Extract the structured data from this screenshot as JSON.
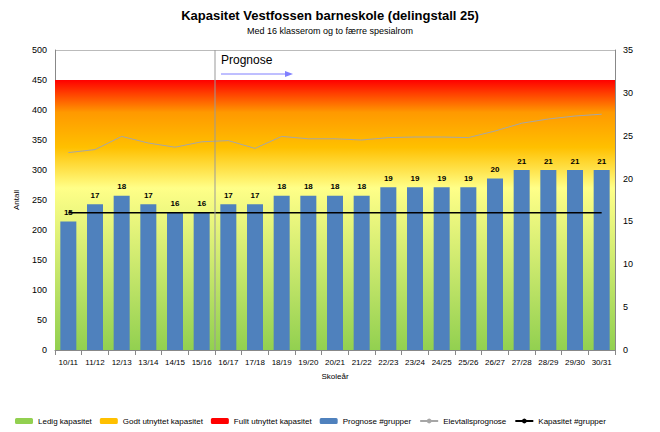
{
  "chart_data": {
    "type": "bar",
    "title": "Kapasitet Vestfossen barneskole (delingstall 25)",
    "subtitle": "Med 16 klasserom og to færre spesialrom",
    "x_label": "Skoleår",
    "y_label": "Antall",
    "categories": [
      "10/11",
      "11/12",
      "12/13",
      "13/14",
      "14/15",
      "15/16",
      "16/17",
      "17/18",
      "18/19",
      "19/20",
      "20/21",
      "21/22",
      "22/23",
      "23/24",
      "24/25",
      "25/26",
      "26/27",
      "27/28",
      "28/29",
      "29/30",
      "30/31"
    ],
    "series": [
      {
        "name": "Prognose #grupper",
        "type": "bar",
        "color": "#4f81bd",
        "axis": "y2",
        "data_labels": true,
        "values": [
          15,
          17,
          18,
          17,
          16,
          16,
          17,
          17,
          18,
          18,
          18,
          18,
          19,
          19,
          19,
          19,
          20,
          21,
          21,
          21,
          21
        ]
      },
      {
        "name": "Elevtallsprognose",
        "type": "line",
        "color": "#a6a6a6",
        "values": [
          329,
          334,
          356,
          345,
          338,
          347,
          349,
          336,
          356,
          352,
          352,
          350,
          354,
          355,
          355,
          354,
          365,
          378,
          385,
          390,
          393
        ]
      },
      {
        "name": "Kapasitet #grupper",
        "type": "line",
        "color": "#000000",
        "axis": "y2",
        "values": [
          16,
          16,
          16,
          16,
          16,
          16,
          16,
          16,
          16,
          16,
          16,
          16,
          16,
          16,
          16,
          16,
          16,
          16,
          16,
          16,
          16
        ]
      }
    ],
    "capacity_zones": [
      {
        "name": "Ledig kapasitet",
        "color": "#92d050"
      },
      {
        "name": "Godt utnyttet kapasitet",
        "color": "#ffc000"
      },
      {
        "name": "Fullt utnyttet kapasitet",
        "color": "#ff0000"
      }
    ],
    "zone_range": [
      0,
      450
    ],
    "annotations": [
      {
        "text": "Prognose",
        "x": "16/17"
      }
    ],
    "ylim": [
      0,
      500
    ],
    "yticks": [
      0,
      50,
      100,
      150,
      200,
      250,
      300,
      350,
      400,
      450,
      500
    ],
    "y2lim": [
      0,
      35
    ],
    "y2ticks": [
      0,
      5,
      10,
      15,
      20,
      25,
      30,
      35
    ],
    "grid": true,
    "legend": "bottom"
  }
}
